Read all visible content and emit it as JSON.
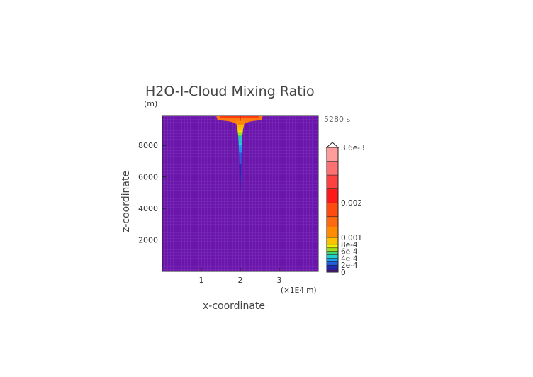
{
  "chart_data": {
    "type": "heatmap",
    "title": "H2O-I-Cloud Mixing Ratio",
    "y_unit": "(m)",
    "xlabel": "x-coordinate",
    "ylabel": "z-coordinate",
    "x_unit": "(×1E4 m)",
    "time_label": "5280 s",
    "xlim": [
      0,
      4
    ],
    "ylim": [
      0,
      9900
    ],
    "x_ticks": [
      {
        "value": 1,
        "label": "1"
      },
      {
        "value": 2,
        "label": "2"
      },
      {
        "value": 3,
        "label": "3"
      }
    ],
    "y_ticks": [
      {
        "value": 2000,
        "label": "2000"
      },
      {
        "value": 4000,
        "label": "4000"
      },
      {
        "value": 6000,
        "label": "6000"
      },
      {
        "value": 8000,
        "label": "8000"
      }
    ],
    "colorbar": {
      "max": 0.0036,
      "labels": [
        {
          "value": 0.0036,
          "label": "3.6e-3"
        },
        {
          "value": 0.002,
          "label": "0.002"
        },
        {
          "value": 0.001,
          "label": "0.001"
        },
        {
          "value": 0.0008,
          "label": "8e-4"
        },
        {
          "value": 0.0006,
          "label": "6e-4"
        },
        {
          "value": 0.0004,
          "label": "4e-4"
        },
        {
          "value": 0.0002,
          "label": "2e-4"
        },
        {
          "value": 0,
          "label": "0"
        }
      ]
    },
    "plume": {
      "center_x": 2.0,
      "anvil": {
        "x_min": 1.38,
        "x_max": 2.58,
        "z_bottom": 9550,
        "z_top": 9900
      },
      "column_profile": [
        {
          "z": 9550,
          "half_width": 0.12,
          "value": 0.0012
        },
        {
          "z": 9000,
          "half_width": 0.07,
          "value": 0.0008
        },
        {
          "z": 8500,
          "half_width": 0.05,
          "value": 0.0005
        },
        {
          "z": 7800,
          "half_width": 0.035,
          "value": 0.00035
        },
        {
          "z": 7000,
          "half_width": 0.025,
          "value": 0.00022
        },
        {
          "z": 6000,
          "half_width": 0.018,
          "value": 0.00012
        },
        {
          "z": 5000,
          "half_width": 0.008,
          "value": 5e-05
        },
        {
          "z": 4700,
          "half_width": 0.0,
          "value": 0.0
        }
      ]
    }
  }
}
